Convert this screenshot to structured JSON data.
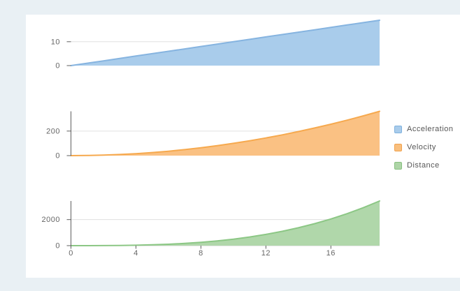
{
  "page": {
    "background_color": "#e9f0f4",
    "panel_color": "#ffffff"
  },
  "axis_style": {
    "grid_color": "#e0e0e0",
    "axis_line_color": "#5f5f5f",
    "x_axis_line_color": "#cfcfcf",
    "label_color": "#666666"
  },
  "legend": {
    "items": [
      {
        "label": "Acceleration",
        "color": "#a9cceb",
        "border": "#7fb1dd"
      },
      {
        "label": "Velocity",
        "color": "#f9bf7e",
        "border": "#f0a24e"
      },
      {
        "label": "Distance",
        "color": "#aed5a7",
        "border": "#87c07f"
      }
    ]
  },
  "chart_data": [
    {
      "type": "area",
      "name": "Acceleration",
      "x": [
        0,
        1,
        2,
        3,
        4,
        5,
        6,
        7,
        8,
        9,
        10,
        11,
        12,
        13,
        14,
        15,
        16,
        17,
        18,
        19
      ],
      "values": [
        0,
        1,
        2,
        3,
        4,
        5,
        6,
        7,
        8,
        9,
        10,
        11,
        12,
        13,
        14,
        15,
        16,
        17,
        18,
        19
      ],
      "xlim": [
        0,
        19
      ],
      "ylim": [
        0,
        19
      ],
      "yticks": [
        {
          "value": 0,
          "label": "0"
        },
        {
          "value": 10,
          "label": "10"
        }
      ],
      "xticks": [],
      "fill_color": "#a9cceb",
      "stroke_color": "#86b4e0",
      "show_y_axis_line": false,
      "show_x_axis_line": false,
      "grid": true,
      "legend_position": "right"
    },
    {
      "type": "area",
      "name": "Velocity",
      "x": [
        0,
        1,
        2,
        3,
        4,
        5,
        6,
        7,
        8,
        9,
        10,
        11,
        12,
        13,
        14,
        15,
        16,
        17,
        18,
        19
      ],
      "values": [
        0,
        1,
        4,
        9,
        16,
        25,
        36,
        49,
        64,
        81,
        100,
        121,
        144,
        169,
        196,
        225,
        256,
        289,
        324,
        361
      ],
      "xlim": [
        0,
        19
      ],
      "ylim": [
        0,
        361
      ],
      "yticks": [
        {
          "value": 0,
          "label": "0"
        },
        {
          "value": 200,
          "label": "200"
        }
      ],
      "xticks": [],
      "fill_color": "#fac183",
      "stroke_color": "#f6a94e",
      "show_y_axis_line": true,
      "show_x_axis_line": false,
      "grid": true,
      "legend_position": "right"
    },
    {
      "type": "area",
      "name": "Distance",
      "x": [
        0,
        1,
        2,
        3,
        4,
        5,
        6,
        7,
        8,
        9,
        10,
        11,
        12,
        13,
        14,
        15,
        16,
        17,
        18,
        19
      ],
      "values": [
        0,
        0.5,
        4,
        13.5,
        32,
        62.5,
        108,
        171.5,
        256,
        364.5,
        500,
        665.5,
        864,
        1098.5,
        1372,
        1687.5,
        2048,
        2456.5,
        2916,
        3429.5
      ],
      "xlim": [
        0,
        19
      ],
      "ylim": [
        0,
        3429.5
      ],
      "yticks": [
        {
          "value": 0,
          "label": "0"
        },
        {
          "value": 2000,
          "label": "2000"
        }
      ],
      "xticks": [
        {
          "value": 0,
          "label": "0"
        },
        {
          "value": 4,
          "label": "4"
        },
        {
          "value": 8,
          "label": "8"
        },
        {
          "value": 12,
          "label": "12"
        },
        {
          "value": 16,
          "label": "16"
        }
      ],
      "fill_color": "#b0d7aa",
      "stroke_color": "#8cc785",
      "show_y_axis_line": true,
      "show_x_axis_line": true,
      "grid": true,
      "legend_position": "right"
    }
  ]
}
